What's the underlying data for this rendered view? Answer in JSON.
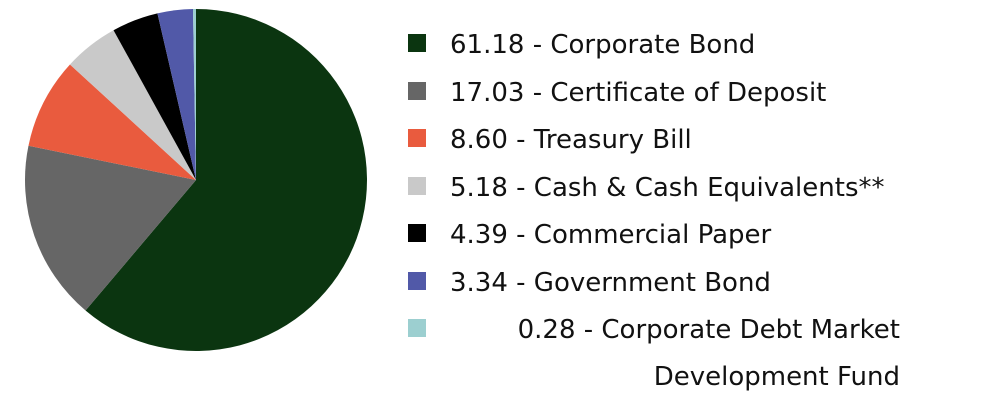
{
  "chart_data": {
    "type": "pie",
    "labels": [
      "61.18 - Corporate Bond",
      "17.03 - Certificate of Deposit",
      "8.60 - Treasury Bill",
      "5.18 - Cash & Cash Equivalents**",
      "4.39 - Commercial Paper",
      "3.34 - Government Bond",
      "0.28 - Corporate Debt Market Development Fund"
    ],
    "values": [
      61.18,
      17.03,
      8.6,
      5.18,
      4.39,
      3.34,
      0.28
    ],
    "colors": [
      "#0b3510",
      "#666666",
      "#e95b3e",
      "#c9c9c9",
      "#000000",
      "#5159a8",
      "#9ccfd0"
    ],
    "start_angle": 0,
    "direction": "clockwise"
  }
}
